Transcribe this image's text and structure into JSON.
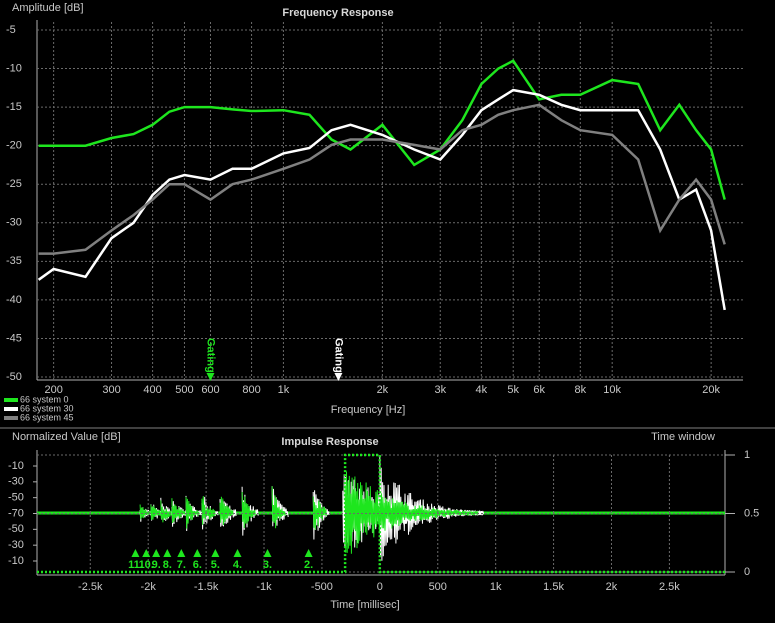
{
  "chart_data": [
    {
      "type": "line",
      "title": "Frequency Response",
      "ylabel": "Amplitude [dB]",
      "xlabel": "Frequency [Hz]",
      "log_x": true,
      "grid": true,
      "legend": "below-left",
      "xlim": [
        178,
        25000
      ],
      "ylim": [
        -50,
        -5
      ],
      "xticks": [
        200,
        300,
        400,
        500,
        600,
        800,
        {
          "value": 1000,
          "label": "1k"
        },
        {
          "value": 2000,
          "label": "2k"
        },
        {
          "value": 3000,
          "label": "3k"
        },
        {
          "value": 4000,
          "label": "4k"
        },
        {
          "value": 5000,
          "label": "5k"
        },
        {
          "value": 6000,
          "label": "6k"
        },
        {
          "value": 8000,
          "label": "8k"
        },
        {
          "value": 10000,
          "label": "10k"
        },
        {
          "value": 20000,
          "label": "20k"
        }
      ],
      "yticks": [
        -5,
        -10,
        -15,
        -20,
        -25,
        -30,
        -35,
        -40,
        -45,
        -50
      ],
      "x": [
        180,
        200,
        250,
        300,
        350,
        400,
        450,
        500,
        600,
        700,
        800,
        1000,
        1200,
        1400,
        1600,
        2000,
        2500,
        3000,
        3500,
        4000,
        4500,
        5000,
        6000,
        7000,
        8000,
        10000,
        12000,
        14000,
        16000,
        18000,
        20000,
        22000
      ],
      "series": [
        {
          "name": "66 system 0",
          "color": "#1ee61e",
          "values": [
            -20,
            -20,
            -20,
            -19,
            -18.5,
            -17.3,
            -15.6,
            -15,
            -15,
            -15.3,
            -15.5,
            -15.4,
            -16,
            -19.2,
            -20.5,
            -17.3,
            -22.5,
            -20.5,
            -16.7,
            -12,
            -10,
            -9,
            -14,
            -13.4,
            -13.4,
            -11.5,
            -12,
            -18,
            -14.7,
            -18,
            -20.5,
            -27
          ]
        },
        {
          "name": "66 system 30",
          "color": "#ffffff",
          "values": [
            -37.4,
            -36,
            -37,
            -32,
            -30,
            -26.4,
            -24.4,
            -23.8,
            -24.4,
            -23,
            -23,
            -21,
            -20.3,
            -18,
            -17.3,
            -18.6,
            -20.5,
            -21.8,
            -18.6,
            -15.4,
            -14,
            -12.8,
            -13.4,
            -14.7,
            -15.4,
            -15.4,
            -15.4,
            -20.5,
            -27,
            -25.7,
            -31,
            -41.3
          ]
        },
        {
          "name": "66 system 45",
          "color": "#808080",
          "values": [
            -34,
            -34,
            -33.5,
            -31,
            -29,
            -27,
            -25,
            -25,
            -27,
            -25,
            -24.4,
            -23,
            -21.8,
            -19.9,
            -19.2,
            -19.2,
            -19.9,
            -20.5,
            -18,
            -17.3,
            -16,
            -15.4,
            -14.7,
            -16.7,
            -18,
            -18.6,
            -21.8,
            -31,
            -27,
            -24.4,
            -27,
            -32.8
          ]
        }
      ],
      "annotations": [
        {
          "text": "Gating",
          "x": 600,
          "color": "#1ee61e"
        },
        {
          "text": "Gating",
          "x": 1470,
          "color": "#ffffff"
        }
      ]
    },
    {
      "type": "impulse",
      "title": "Impulse Response",
      "ylabel": "Normalized Value [dB]",
      "y2label": "Time window",
      "xlabel": "Time [millisec]",
      "xlim": [
        -2960,
        2980
      ],
      "xticks": [
        {
          "value": -2500,
          "label": "-2.5k"
        },
        {
          "value": -2000,
          "label": "-2k"
        },
        {
          "value": -1500,
          "label": "-1.5k"
        },
        {
          "value": -1000,
          "label": "-1k"
        },
        -500,
        0,
        500,
        {
          "value": 1000,
          "label": "1k"
        },
        {
          "value": 1500,
          "label": "1.5k"
        },
        {
          "value": 2000,
          "label": "2k"
        },
        {
          "value": 2500,
          "label": "2.5k"
        }
      ],
      "ytick_labels": [
        "-10",
        "-30",
        "-50",
        "-70",
        "-50",
        "-30",
        "-10"
      ],
      "y2lim": [
        0,
        1
      ],
      "y2ticks": [
        0,
        0.5,
        1
      ],
      "window": {
        "color": "#1ee61e",
        "x": [
          -2960,
          -300,
          -300,
          0,
          0,
          2980
        ],
        "values": [
          0,
          0,
          1,
          1,
          0,
          0
        ],
        "axis": "y2"
      },
      "markers": [
        {
          "label": "11.",
          "x": -2110
        },
        {
          "label": "10.",
          "x": -2017
        },
        {
          "label": "9.",
          "x": -1931
        },
        {
          "label": "8.",
          "x": -1835
        },
        {
          "label": "7.",
          "x": -1714
        },
        {
          "label": "6.",
          "x": -1576
        },
        {
          "label": "5.",
          "x": -1420
        },
        {
          "label": "4.",
          "x": -1229
        },
        {
          "label": "3.",
          "x": -970
        },
        {
          "label": "2.",
          "x": -615
        }
      ]
    }
  ]
}
